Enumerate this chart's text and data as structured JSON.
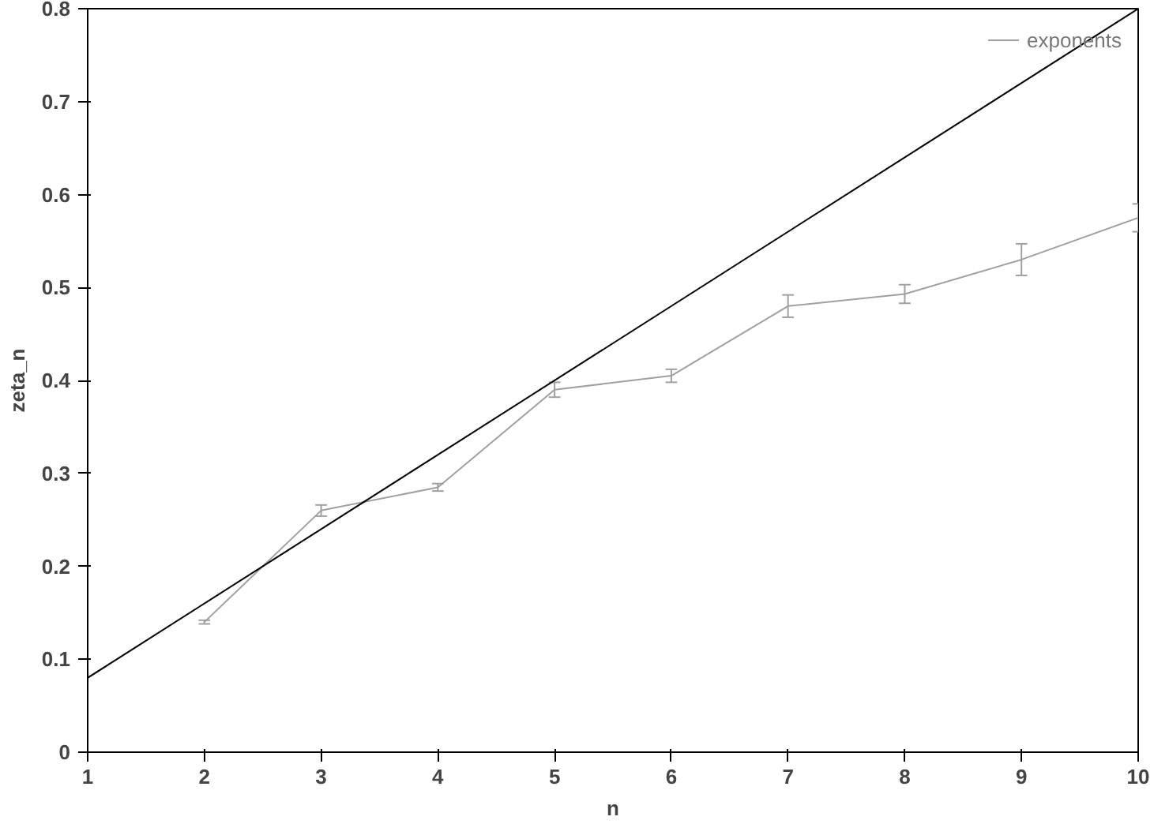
{
  "chart_data": {
    "type": "line",
    "xlabel": "n",
    "ylabel": "zeta_n",
    "xlim": [
      1,
      10
    ],
    "ylim": [
      0,
      0.8
    ],
    "xticks": [
      1,
      2,
      3,
      4,
      5,
      6,
      7,
      8,
      9,
      10
    ],
    "yticks": [
      0,
      0.1,
      0.2,
      0.3,
      0.4,
      0.5,
      0.6,
      0.7,
      0.8
    ],
    "grid": false,
    "legend": "top right",
    "series": [
      {
        "name": "exponents",
        "color": "#a0a0a0",
        "x": [
          2,
          3,
          4,
          5,
          6,
          7,
          8,
          9,
          10
        ],
        "values": [
          0.14,
          0.26,
          0.285,
          0.39,
          0.405,
          0.48,
          0.493,
          0.53,
          0.575
        ],
        "errors": [
          0.002,
          0.006,
          0.004,
          0.008,
          0.007,
          0.012,
          0.01,
          0.017,
          0.015
        ]
      },
      {
        "color": "#000000",
        "x": [
          1,
          10
        ],
        "values": [
          0.08,
          0.8
        ]
      }
    ]
  }
}
